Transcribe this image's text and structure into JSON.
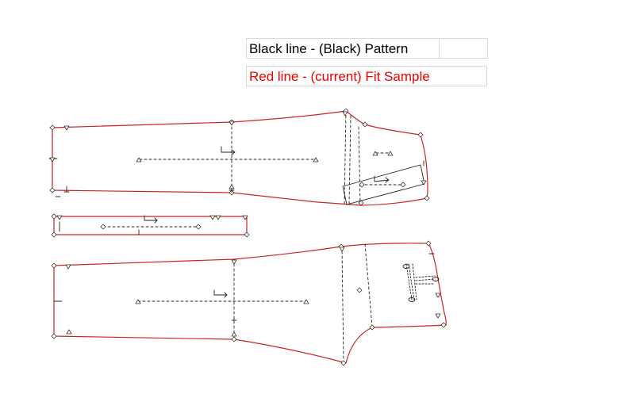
{
  "legend": {
    "black_label": "Black line - (Black) Pattern",
    "red_label": "Red line - (current) Fit Sample"
  },
  "colors": {
    "pattern_line": "#000000",
    "fit_sample_line": "#cc2222",
    "marker": "#333333",
    "legend_border": "#d9d9d9",
    "red_text": "#ee0000"
  }
}
